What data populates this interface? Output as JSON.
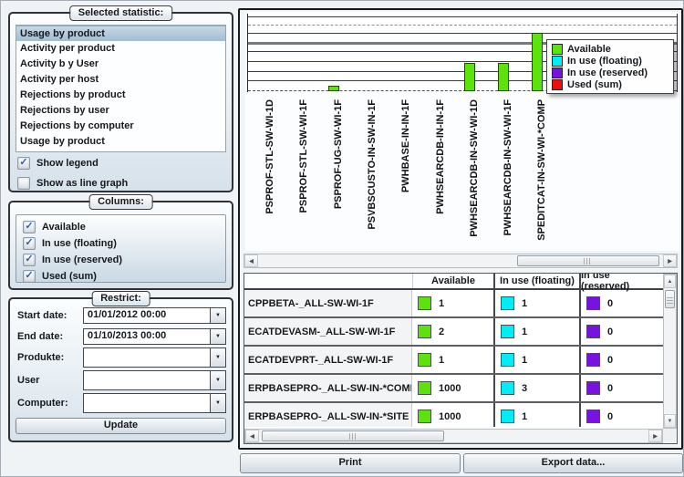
{
  "left_panel": {
    "statistic_group": {
      "label": "Selected statistic:",
      "items": [
        "Usage by product",
        "Activity per product",
        "Activity b y User",
        "Activity per host",
        "Rejections by product",
        "Rejections by user",
        "Rejections by computer",
        "Usage by product"
      ],
      "selected_index": 0,
      "checkboxes": [
        {
          "label": "Show legend",
          "checked": true
        },
        {
          "label": "Show as line graph",
          "checked": false
        }
      ]
    },
    "columns_group": {
      "label": "Columns:",
      "options": [
        {
          "label": "Available",
          "checked": true
        },
        {
          "label": "In use (floating)",
          "checked": true
        },
        {
          "label": "In use (reserved)",
          "checked": true
        },
        {
          "label": "Used (sum)",
          "checked": true
        }
      ]
    },
    "restrict_group": {
      "label": "Restrict:",
      "fields": [
        {
          "label": "Start date:",
          "value": "01/01/2012 00:00",
          "tall": false
        },
        {
          "label": "End date:",
          "value": "01/10/2013 00:00",
          "tall": false
        },
        {
          "label": "Produkte:",
          "value": "",
          "tall": true
        },
        {
          "label": "User",
          "value": "",
          "tall": true
        },
        {
          "label": "Computer:",
          "value": "",
          "tall": true
        }
      ],
      "update_button": "Update"
    }
  },
  "chart_data": {
    "type": "bar",
    "title": "",
    "categories": [
      "PSPROF-STL-SW-WI-1D",
      "PSPROF-STL-SW-WI-1F",
      "PSPROF-UG-SW-WI-1F",
      "PSVBSCUSTO-IN-SW-IN-1F",
      "PWHBASE-IN-IN-1F",
      "PWHSEARCDB-IN-IN-1F",
      "PWHSEARCDB-IN-SW-WI-1D",
      "PWHSEARCDB-IN-SW-WI-1F",
      "SPEDITCAT-IN-SW-WI-*COMP"
    ],
    "series": [
      {
        "name": "Available",
        "color": "#5BE30A",
        "values": [
          0,
          0,
          0.4,
          0,
          0,
          0,
          2.2,
          2.2,
          4.5
        ]
      },
      {
        "name": "In use (floating)",
        "color": "#00EDF5",
        "values": [
          0,
          0,
          0,
          0,
          0,
          0,
          0,
          0,
          0
        ]
      },
      {
        "name": "In use (reserved)",
        "color": "#7911E3",
        "values": [
          0,
          0,
          0,
          0,
          0,
          0,
          0,
          0,
          0
        ]
      },
      {
        "name": "Used (sum)",
        "color": "#F20D0D",
        "values": [
          0,
          0,
          0,
          0,
          0,
          0,
          0,
          0,
          0
        ]
      }
    ],
    "ylim": [
      0,
      6
    ],
    "grid": true,
    "y_axis_labels_visible": false,
    "legend_position": "top-right",
    "note": "bar values estimated in gridline units; y axis is unlabeled; chart is horizontally scrolled"
  },
  "table": {
    "columns": [
      "",
      "Available",
      "In use (floating)",
      "In use (reserved)"
    ],
    "value_colors": [
      "#5BE30A",
      "#00EDF5",
      "#7911E3"
    ],
    "rows": [
      {
        "name": "CPPBETA-_ALL-SW-WI-1F",
        "values": [
          "1",
          "1",
          "0"
        ]
      },
      {
        "name": "ECATDEVASM-_ALL-SW-WI-1F",
        "values": [
          "2",
          "1",
          "0"
        ]
      },
      {
        "name": "ECATDEVPRT-_ALL-SW-WI-1F",
        "values": [
          "1",
          "1",
          "0"
        ]
      },
      {
        "name": "ERPBASEPRO-_ALL-SW-IN-*COMP",
        "values": [
          "1000",
          "3",
          "0"
        ]
      },
      {
        "name": "ERPBASEPRO-_ALL-SW-IN-*SITE",
        "values": [
          "1000",
          "1",
          "0"
        ]
      }
    ],
    "partial_row_visible": true
  },
  "footer": {
    "print_button": "Print",
    "export_button": "Export data..."
  }
}
